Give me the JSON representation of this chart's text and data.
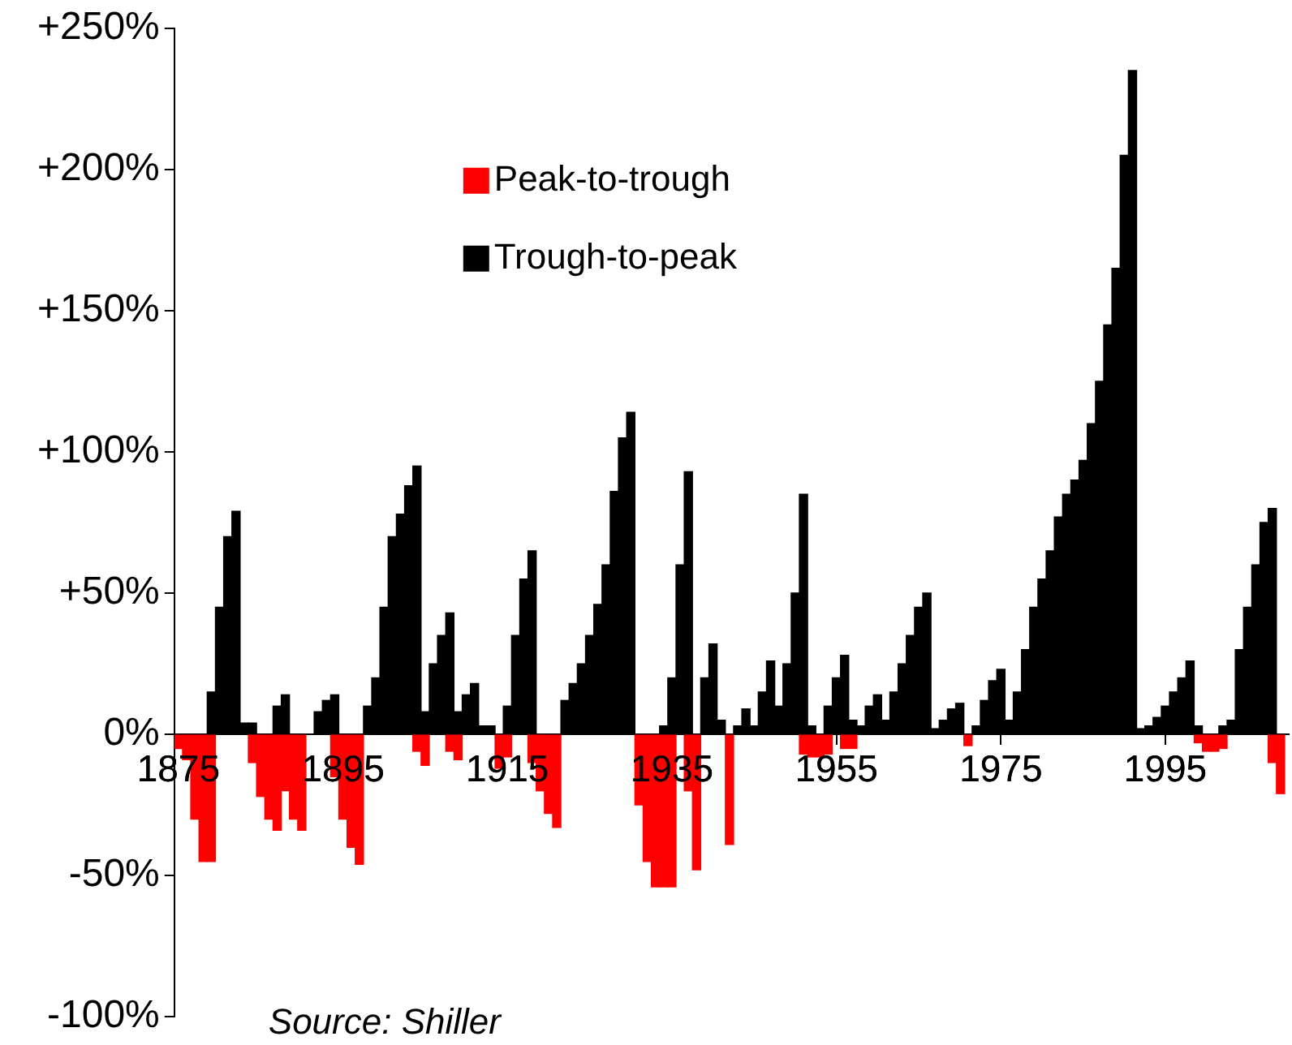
{
  "chart_data": {
    "type": "bar",
    "legend": "top left",
    "annotations": [
      "Source: Shiller"
    ],
    "xlim": [
      1874.5,
      2010
    ],
    "xticks": [
      1875,
      1895,
      1915,
      1935,
      1955,
      1975,
      1995
    ],
    "ylim": [
      -100,
      250
    ],
    "yticks": [
      {
        "value": -100,
        "label": "-100%"
      },
      {
        "value": -50,
        "label": "-50%"
      },
      {
        "value": 0,
        "label": "0%"
      },
      {
        "value": 50,
        "label": "+50%"
      },
      {
        "value": 100,
        "label": "+100%"
      },
      {
        "value": 150,
        "label": "+150%"
      },
      {
        "value": 200,
        "label": "+200%"
      },
      {
        "value": 250,
        "label": "+250%"
      }
    ],
    "grid": false,
    "series": [
      {
        "name": "Peak-to-trough",
        "color": "#ff0000",
        "x": [
          1875,
          1876,
          1877,
          1878,
          1879,
          1884,
          1885,
          1886,
          1887,
          1888,
          1889,
          1890,
          1894,
          1895,
          1896,
          1897,
          1904,
          1905,
          1908,
          1909,
          1914,
          1915,
          1918,
          1919,
          1920,
          1921,
          1931,
          1932,
          1933,
          1934,
          1935,
          1937,
          1938,
          1942,
          1951,
          1952,
          1953,
          1954,
          1956,
          1957,
          1971,
          1999,
          2000,
          2001,
          2002,
          2008,
          2009
        ],
        "values": [
          -5,
          -9,
          -30,
          -45,
          -45,
          -10,
          -22,
          -30,
          -34,
          -20,
          -30,
          -34,
          -15,
          -30,
          -40,
          -46,
          -6,
          -11,
          -6,
          -9,
          -12,
          -8,
          -10,
          -20,
          -28,
          -33,
          -25,
          -45,
          -54,
          -54,
          -54,
          -20,
          -48,
          -39,
          -7,
          -8,
          -8,
          -7,
          -5,
          -5,
          -4,
          -3,
          -6,
          -6,
          -5,
          -10,
          -21
        ]
      },
      {
        "name": "Trough-to-peak",
        "color": "#000000",
        "x": [
          1879,
          1880,
          1881,
          1882,
          1883,
          1884,
          1887,
          1888,
          1892,
          1893,
          1894,
          1898,
          1899,
          1900,
          1901,
          1902,
          1903,
          1904,
          1905,
          1906,
          1907,
          1908,
          1909,
          1910,
          1911,
          1912,
          1913,
          1915,
          1916,
          1917,
          1918,
          1922,
          1923,
          1924,
          1925,
          1926,
          1927,
          1928,
          1929,
          1930,
          1934,
          1935,
          1936,
          1937,
          1939,
          1940,
          1941,
          1943,
          1944,
          1945,
          1946,
          1947,
          1948,
          1949,
          1950,
          1951,
          1952,
          1954,
          1955,
          1956,
          1957,
          1958,
          1959,
          1960,
          1961,
          1962,
          1963,
          1964,
          1965,
          1966,
          1967,
          1968,
          1969,
          1970,
          1972,
          1973,
          1974,
          1975,
          1976,
          1977,
          1978,
          1979,
          1980,
          1981,
          1982,
          1983,
          1984,
          1985,
          1986,
          1987,
          1988,
          1989,
          1990,
          1991,
          1992,
          1993,
          1994,
          1995,
          1996,
          1997,
          1998,
          1999,
          2002,
          2003,
          2004,
          2005,
          2006,
          2007,
          2008
        ],
        "values": [
          15,
          45,
          70,
          79,
          4,
          4,
          10,
          14,
          8,
          12,
          14,
          10,
          20,
          45,
          70,
          78,
          88,
          95,
          8,
          25,
          35,
          43,
          8,
          14,
          18,
          3,
          3,
          10,
          35,
          55,
          65,
          12,
          18,
          25,
          35,
          46,
          60,
          86,
          105,
          114,
          3,
          20,
          60,
          93,
          20,
          32,
          5,
          3,
          9,
          3,
          15,
          26,
          10,
          25,
          50,
          85,
          3,
          10,
          20,
          28,
          5,
          3,
          10,
          14,
          5,
          15,
          25,
          35,
          45,
          50,
          2,
          5,
          9,
          11,
          3,
          12,
          19,
          23,
          5,
          15,
          30,
          45,
          55,
          65,
          77,
          85,
          90,
          97,
          110,
          125,
          145,
          165,
          205,
          235,
          2,
          3,
          6,
          10,
          15,
          20,
          26,
          3,
          3,
          5,
          30,
          45,
          60,
          75,
          80
        ]
      }
    ]
  }
}
